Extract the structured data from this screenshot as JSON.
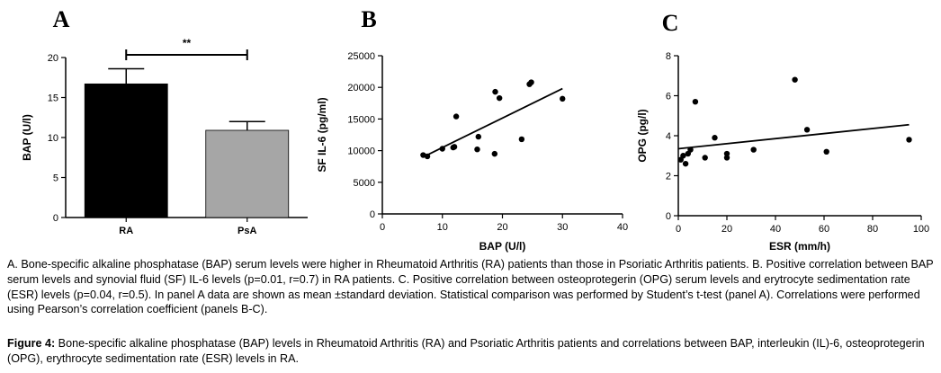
{
  "chart_data": [
    {
      "type": "bar",
      "panel_label": "A",
      "ylabel": "BAP (U/l)",
      "xlabel": "",
      "ylim": [
        0,
        20
      ],
      "yticks": [
        0,
        5,
        10,
        15,
        20
      ],
      "categories": [
        "RA",
        "PsA"
      ],
      "values": [
        16.7,
        10.9
      ],
      "error": [
        1.9,
        1.1
      ],
      "bar_colors": [
        "#000000",
        "#a6a6a6"
      ],
      "significance": {
        "from": 0,
        "to": 1,
        "label": "**"
      }
    },
    {
      "type": "scatter",
      "panel_label": "B",
      "xlabel": "BAP (U/l)",
      "ylabel": "SF IL-6 (pg/ml)",
      "xlim": [
        0,
        40
      ],
      "ylim": [
        0,
        25000
      ],
      "xticks": [
        0,
        10,
        20,
        30,
        40
      ],
      "yticks": [
        0,
        5000,
        10000,
        15000,
        20000,
        25000
      ],
      "points": [
        [
          6.8,
          9300
        ],
        [
          7.5,
          9100
        ],
        [
          10.0,
          10300
        ],
        [
          11.8,
          10500
        ],
        [
          12.0,
          10600
        ],
        [
          12.3,
          15400
        ],
        [
          15.8,
          10200
        ],
        [
          16.0,
          12200
        ],
        [
          18.7,
          9500
        ],
        [
          18.8,
          19300
        ],
        [
          19.5,
          18300
        ],
        [
          23.2,
          11800
        ],
        [
          24.5,
          20500
        ],
        [
          24.8,
          20800
        ],
        [
          30.0,
          18200
        ]
      ],
      "fit_line": {
        "x": [
          6.8,
          30.0
        ],
        "y": [
          9000,
          19800
        ]
      }
    },
    {
      "type": "scatter",
      "panel_label": "C",
      "xlabel": "ESR (mm/h)",
      "ylabel": "OPG (pg/l)",
      "xlim": [
        0,
        100
      ],
      "ylim": [
        0,
        8
      ],
      "xticks": [
        0,
        20,
        40,
        60,
        80,
        100
      ],
      "yticks": [
        0,
        2,
        4,
        6,
        8
      ],
      "points": [
        [
          1.0,
          2.8
        ],
        [
          2.0,
          3.0
        ],
        [
          3.0,
          2.6
        ],
        [
          4.0,
          3.1
        ],
        [
          5.0,
          3.3
        ],
        [
          7.0,
          5.7
        ],
        [
          11.0,
          2.9
        ],
        [
          15.0,
          3.9
        ],
        [
          20.0,
          2.9
        ],
        [
          20.0,
          3.1
        ],
        [
          31.0,
          3.3
        ],
        [
          48.0,
          6.8
        ],
        [
          53.0,
          4.3
        ],
        [
          61.0,
          3.2
        ],
        [
          95.0,
          3.8
        ]
      ],
      "fit_line": {
        "x": [
          0,
          95
        ],
        "y": [
          3.35,
          4.55
        ]
      }
    }
  ],
  "legend": "A. Bone-specific alkaline phosphatase (BAP) serum levels were higher in Rheumatoid Arthritis (RA) patients than those in Psoriatic Arthritis patients. B. Positive correlation between BAP serum levels and synovial fluid (SF) IL-6 levels (p=0.01, r=0.7) in RA patients. C. Positive correlation between osteoprotegerin (OPG) serum levels and erytrocyte sedimentation rate (ESR) levels (p=0.04, r=0.5). In panel A data are shown as mean ±standard deviation. Statistical comparison was performed by Student’s t-test (panel A). Correlations were performed using Pearson’s correlation coefficient (panels B-C).",
  "caption": {
    "label": "Figure 4:",
    "text": " Bone-specific alkaline phosphatase (BAP) levels in Rheumatoid Arthritis (RA) and Psoriatic Arthritis patients and correlations between BAP, interleukin (IL)-6, osteoprotegerin (OPG), erythrocyte sedimentation rate (ESR) levels in RA."
  }
}
